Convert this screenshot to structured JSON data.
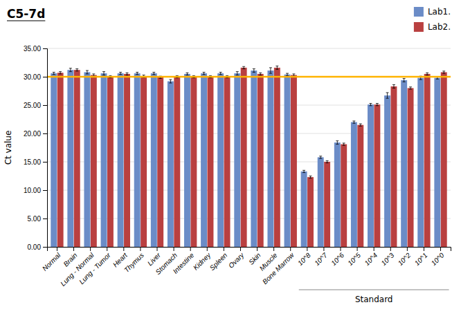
{
  "chart_data": {
    "type": "bar",
    "title": "C5-7d",
    "y_label": "Ct value",
    "categories": [
      "Normal",
      "Brain",
      "Lung - Normal",
      "Lung - Tumor",
      "Heart",
      "Thymus",
      "Liver",
      "Stomach",
      "Intestine",
      "Kidney",
      "Spleen",
      "Ovary",
      "Skin",
      "Muscle",
      "Bone Marrow",
      "10^8",
      "10^7",
      "10^6",
      "10^5",
      "10^4",
      "10^3",
      "10^2",
      "10^1",
      "10^0"
    ],
    "series": [
      {
        "name": "Lab1.",
        "color": "#6B8CC7",
        "values": [
          30.6,
          31.2,
          30.8,
          30.6,
          30.6,
          30.6,
          30.6,
          29.2,
          30.5,
          30.6,
          30.6,
          30.6,
          31.1,
          31.1,
          30.4,
          13.3,
          15.8,
          18.4,
          22.0,
          25.1,
          26.7,
          29.4,
          29.8,
          29.8
        ],
        "errors": [
          0.2,
          0.3,
          0.3,
          0.3,
          0.2,
          0.2,
          0.2,
          0.3,
          0.2,
          0.2,
          0.2,
          0.3,
          0.3,
          0.5,
          0.2,
          0.2,
          0.2,
          0.3,
          0.2,
          0.2,
          0.5,
          0.3,
          0.3,
          0.2
        ]
      },
      {
        "name": "Lab2.",
        "color": "#B94040",
        "values": [
          30.7,
          31.2,
          30.3,
          30.0,
          30.5,
          30.1,
          29.9,
          30.0,
          30.0,
          30.0,
          30.0,
          31.6,
          30.5,
          31.6,
          30.3,
          12.3,
          15.0,
          18.1,
          21.5,
          25.1,
          28.3,
          28.0,
          30.5,
          30.8
        ],
        "errors": [
          0.2,
          0.2,
          0.2,
          0.2,
          0.2,
          0.2,
          0.2,
          0.2,
          0.2,
          0.2,
          0.2,
          0.2,
          0.2,
          0.3,
          0.2,
          0.2,
          0.2,
          0.2,
          0.2,
          0.2,
          0.3,
          0.2,
          0.2,
          0.2
        ]
      }
    ],
    "ylim": [
      0,
      35
    ],
    "yticks": [
      {
        "value": 0,
        "label": "0.00"
      },
      {
        "value": 5,
        "label": "5.00"
      },
      {
        "value": 10,
        "label": "10.00"
      },
      {
        "value": 15,
        "label": "15.00"
      },
      {
        "value": 20,
        "label": "20.00"
      },
      {
        "value": 25,
        "label": "25.00"
      },
      {
        "value": 30,
        "label": "30.00"
      },
      {
        "value": 35,
        "label": "35.00"
      }
    ],
    "grid": true,
    "legend": "upper right",
    "reference_lines": [
      {
        "y": 30.0,
        "color": "#FFB300"
      }
    ],
    "annotations": [
      {
        "text": "Standard",
        "from": "10^8",
        "to": "10^0"
      }
    ]
  }
}
